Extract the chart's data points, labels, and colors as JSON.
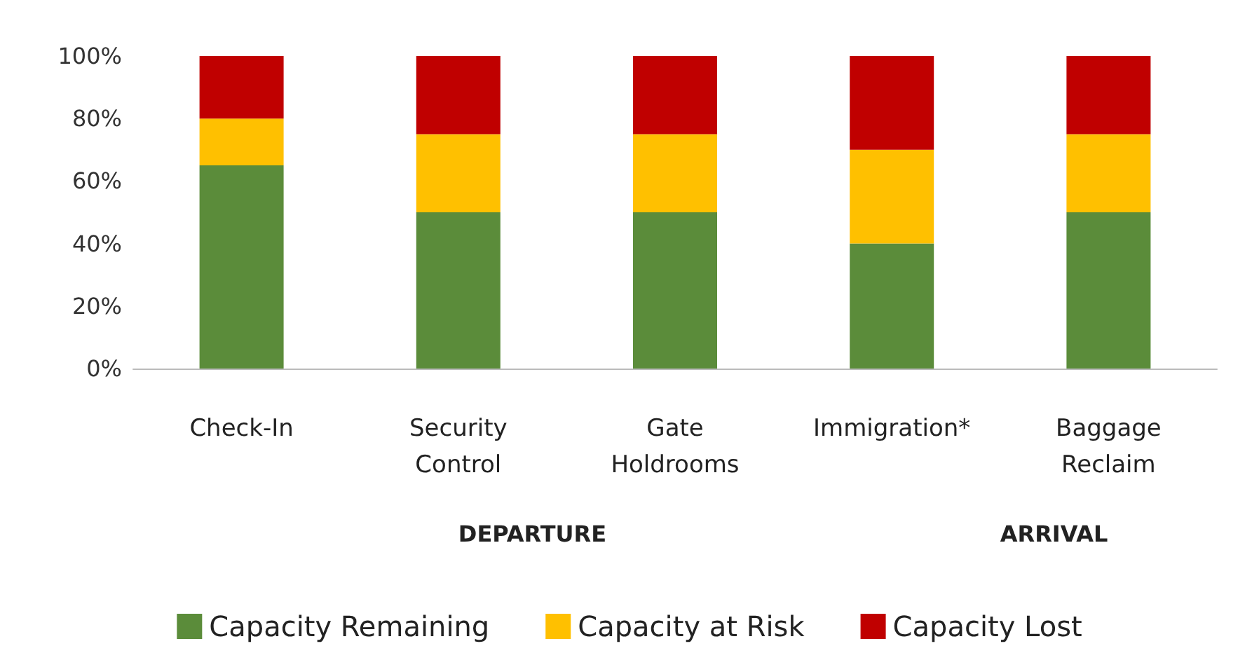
{
  "chart_data": {
    "type": "bar",
    "stacked": true,
    "categories": [
      "Check-In",
      "Security Control",
      "Gate Holdrooms",
      "Immigration*",
      "Baggage Reclaim"
    ],
    "series": [
      {
        "name": "Capacity Remaining",
        "color": "#5b8c3a",
        "values": [
          65,
          50,
          50,
          40,
          50
        ]
      },
      {
        "name": "Capacity at Risk",
        "color": "#ffc000",
        "values": [
          15,
          25,
          25,
          30,
          25
        ]
      },
      {
        "name": "Capacity Lost",
        "color": "#c00000",
        "values": [
          20,
          25,
          25,
          30,
          25
        ]
      }
    ],
    "ylim": [
      0,
      100
    ],
    "yticks": [
      {
        "value": 0,
        "label": "0%"
      },
      {
        "value": 20,
        "label": "20%"
      },
      {
        "value": 40,
        "label": "40%"
      },
      {
        "value": 60,
        "label": "60%"
      },
      {
        "value": 80,
        "label": "80%"
      },
      {
        "value": 100,
        "label": "100%"
      }
    ],
    "annotations": [
      "DEPARTURE",
      "ARRIVAL"
    ],
    "grid": false,
    "legend": "bottom"
  }
}
